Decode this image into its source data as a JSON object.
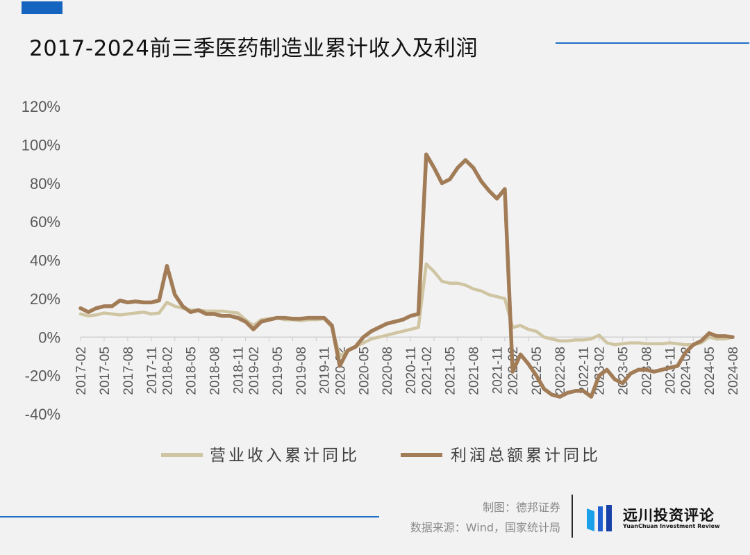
{
  "header": {
    "title": "2017-2024前三季医药制造业累计收入及利润"
  },
  "footer": {
    "made_by": "制图：德邦证券",
    "source": "数据来源：Wind，国家统计局",
    "logo_cn": "远川投资评论",
    "logo_en": "YuanChuan Investment Review"
  },
  "colors": {
    "accent": "#1565c0",
    "revenue_line": "#cfc5a2",
    "profit_line": "#a27c57",
    "axis": "#d0d0d0",
    "tick_text": "#595959"
  },
  "chart_data": {
    "type": "line",
    "title": "",
    "xlabel": "",
    "ylabel": "",
    "ylim": [
      -0.4,
      1.2
    ],
    "y_ticks": [
      -0.4,
      -0.2,
      0,
      0.2,
      0.4,
      0.6,
      0.8,
      1.0,
      1.2
    ],
    "y_tick_labels": [
      "-40%",
      "-20%",
      "0%",
      "20%",
      "40%",
      "60%",
      "80%",
      "100%",
      "120%"
    ],
    "x_tick_labels": [
      "2017-02",
      "2017-05",
      "2017-08",
      "2017-11",
      "2018-02",
      "2018-05",
      "2018-08",
      "2018-11",
      "2019-02",
      "2019-05",
      "2019-08",
      "2019-11",
      "2020-02",
      "2020-05",
      "2020-08",
      "2020-11",
      "2021-02",
      "2021-05",
      "2021-08",
      "2021-11",
      "2022-02",
      "2022-05",
      "2022-08",
      "2022-11",
      "2023-02",
      "2023-05",
      "2023-08",
      "2023-11",
      "2024-02",
      "2024-05",
      "2024-08"
    ],
    "x": [
      "2017-02",
      "2017-03",
      "2017-04",
      "2017-05",
      "2017-06",
      "2017-07",
      "2017-08",
      "2017-09",
      "2017-10",
      "2017-11",
      "2017-12",
      "2018-02",
      "2018-03",
      "2018-04",
      "2018-05",
      "2018-06",
      "2018-07",
      "2018-08",
      "2018-09",
      "2018-10",
      "2018-11",
      "2018-12",
      "2019-02",
      "2019-03",
      "2019-04",
      "2019-05",
      "2019-06",
      "2019-07",
      "2019-08",
      "2019-09",
      "2019-10",
      "2019-11",
      "2019-12",
      "2020-02",
      "2020-03",
      "2020-04",
      "2020-05",
      "2020-06",
      "2020-07",
      "2020-08",
      "2020-09",
      "2020-10",
      "2020-11",
      "2020-12",
      "2021-02",
      "2021-03",
      "2021-04",
      "2021-05",
      "2021-06",
      "2021-07",
      "2021-08",
      "2021-09",
      "2021-10",
      "2021-11",
      "2021-12",
      "2022-02",
      "2022-03",
      "2022-04",
      "2022-05",
      "2022-06",
      "2022-07",
      "2022-08",
      "2022-09",
      "2022-10",
      "2022-11",
      "2022-12",
      "2023-02",
      "2023-03",
      "2023-04",
      "2023-05",
      "2023-06",
      "2023-07",
      "2023-08",
      "2023-09",
      "2023-10",
      "2023-11",
      "2023-12",
      "2024-02",
      "2024-03",
      "2024-04",
      "2024-05",
      "2024-06",
      "2024-07",
      "2024-08"
    ],
    "series": [
      {
        "name": "营业收入累计同比",
        "color": "#cfc5a2",
        "values": [
          0.12,
          0.11,
          0.115,
          0.125,
          0.12,
          0.115,
          0.12,
          0.125,
          0.13,
          0.12,
          0.125,
          0.18,
          0.16,
          0.15,
          0.14,
          0.14,
          0.135,
          0.135,
          0.135,
          0.13,
          0.125,
          0.09,
          0.06,
          0.09,
          0.095,
          0.1,
          0.09,
          0.09,
          0.085,
          0.09,
          0.09,
          0.095,
          0.05,
          -0.1,
          -0.07,
          -0.05,
          -0.03,
          -0.01,
          0.0,
          0.01,
          0.02,
          0.03,
          0.04,
          0.05,
          0.38,
          0.34,
          0.29,
          0.28,
          0.28,
          0.27,
          0.25,
          0.24,
          0.22,
          0.21,
          0.2,
          0.05,
          0.06,
          0.04,
          0.03,
          0.0,
          -0.01,
          -0.02,
          -0.02,
          -0.015,
          -0.015,
          -0.01,
          0.01,
          -0.03,
          -0.04,
          -0.035,
          -0.03,
          -0.03,
          -0.035,
          -0.035,
          -0.035,
          -0.03,
          -0.035,
          -0.04,
          -0.04,
          -0.03,
          0.0,
          -0.01,
          -0.01,
          0.0
        ]
      },
      {
        "name": "利润总额累计同比",
        "color": "#a27c57",
        "values": [
          0.15,
          0.13,
          0.15,
          0.16,
          0.16,
          0.19,
          0.18,
          0.185,
          0.18,
          0.18,
          0.19,
          0.37,
          0.22,
          0.16,
          0.13,
          0.14,
          0.12,
          0.12,
          0.11,
          0.11,
          0.1,
          0.08,
          0.04,
          0.08,
          0.09,
          0.1,
          0.1,
          0.095,
          0.095,
          0.1,
          0.1,
          0.1,
          0.06,
          -0.15,
          -0.07,
          -0.05,
          0.0,
          0.03,
          0.05,
          0.07,
          0.08,
          0.09,
          0.11,
          0.12,
          0.95,
          0.88,
          0.8,
          0.82,
          0.88,
          0.92,
          0.88,
          0.81,
          0.76,
          0.72,
          0.77,
          -0.18,
          -0.09,
          -0.14,
          -0.2,
          -0.27,
          -0.3,
          -0.31,
          -0.29,
          -0.28,
          -0.28,
          -0.31,
          -0.2,
          -0.17,
          -0.22,
          -0.24,
          -0.19,
          -0.17,
          -0.17,
          -0.18,
          -0.17,
          -0.16,
          -0.15,
          -0.08,
          -0.04,
          -0.02,
          0.02,
          0.005,
          0.005,
          0.0
        ]
      }
    ],
    "legend_position": "bottom",
    "grid": false
  }
}
